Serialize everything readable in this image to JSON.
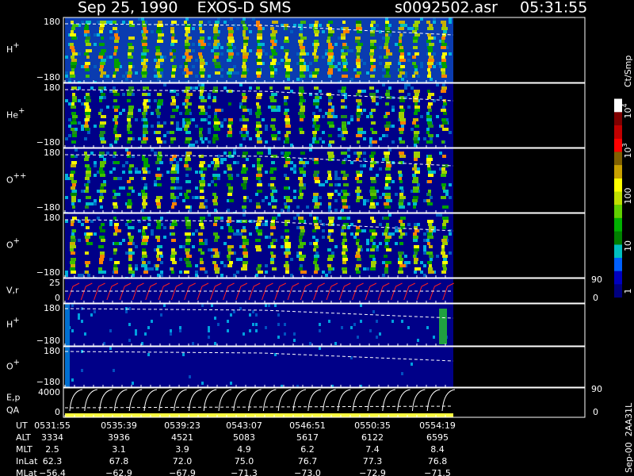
{
  "header": {
    "title": "Sep 25, 1990    EXOS-D SMS",
    "file": "s0092502.asr",
    "time": "05:31:55"
  },
  "panels": [
    {
      "label": "H",
      "sup": "+",
      "ymax": "180",
      "ymin": "−180"
    },
    {
      "label": "He",
      "sup": "+",
      "ymax": "180",
      "ymin": "−180"
    },
    {
      "label": "O",
      "sup": "++",
      "ymax": "180",
      "ymin": "−180"
    },
    {
      "label": "O",
      "sup": "+",
      "ymax": "180",
      "ymin": "−180"
    },
    {
      "label": "V,r",
      "ymax": "25",
      "ymin": "0",
      "rmax": "90",
      "rmin": "0"
    },
    {
      "label": "H",
      "sup": "+",
      "ymax": "180",
      "ymin": "−180"
    },
    {
      "label": "O",
      "sup": "+",
      "ymax": "180",
      "ymin": "−180"
    },
    {
      "label": "E,p",
      "label2": "QA",
      "ymax": "4000",
      "ymin": "0",
      "rmax": "90",
      "rmin": "0"
    }
  ],
  "colorbar": {
    "unit": "Ct/Smp",
    "labels": [
      {
        "base": "10",
        "exp": "4"
      },
      {
        "base": "10",
        "exp": "3"
      },
      {
        "base": "100"
      },
      {
        "base": "10"
      },
      {
        "base": "1"
      }
    ]
  },
  "footer": "Sep-00  2AA31L",
  "table": {
    "rows": [
      {
        "label": "UT",
        "values": [
          "0531:55",
          "0535:39",
          "0539:23",
          "0543:07",
          "0546:51",
          "0550:35",
          "0554:19"
        ]
      },
      {
        "label": "ALT",
        "values": [
          "3334",
          "3936",
          "4521",
          "5083",
          "5617",
          "6122",
          "6595"
        ]
      },
      {
        "label": "MLT",
        "values": [
          "2.5",
          "3.1",
          "3.9",
          "4.9",
          "6.2",
          "7.4",
          "8.4"
        ]
      },
      {
        "label": "InLat",
        "values": [
          "62.3",
          "67.8",
          "72.0",
          "75.0",
          "76.7",
          "77.3",
          "76.8"
        ]
      },
      {
        "label": "MLat",
        "values": [
          "−56.4",
          "−62.9",
          "−67.9",
          "−71.3",
          "−73.0",
          "−72.9",
          "−71.5"
        ]
      }
    ]
  }
}
